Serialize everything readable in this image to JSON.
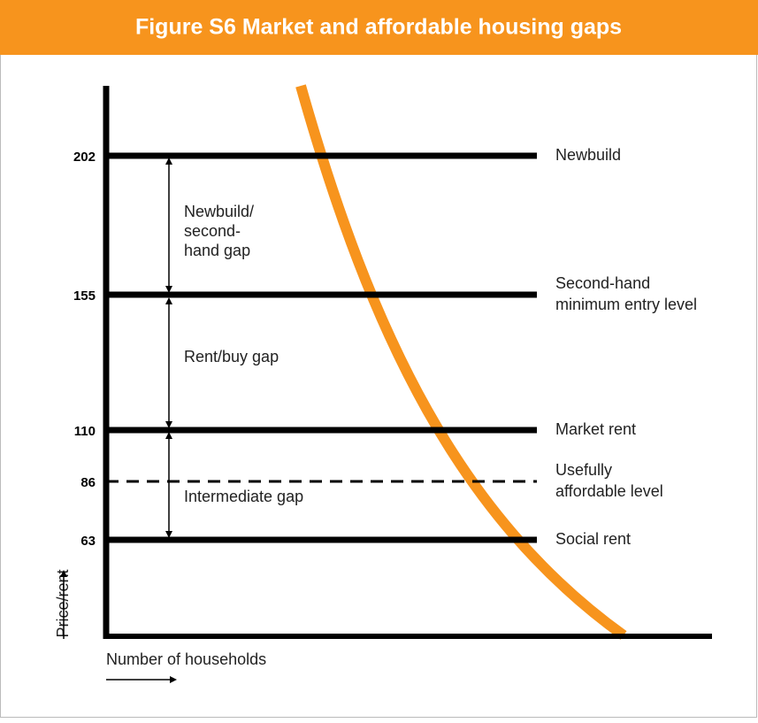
{
  "title": "Figure S6 Market and affordable housing gaps",
  "axes": {
    "y_label": "Price/rent",
    "x_label": "Number of households"
  },
  "levels": [
    {
      "tick": "202",
      "label": [
        "Newbuild"
      ]
    },
    {
      "tick": "155",
      "label": [
        "Second-hand",
        "minimum entry level"
      ]
    },
    {
      "tick": "110",
      "label": [
        "Market rent"
      ]
    },
    {
      "tick": "86",
      "label": [
        "Usefully",
        "affordable level"
      ]
    },
    {
      "tick": "63",
      "label": [
        "Social rent"
      ]
    }
  ],
  "gaps": [
    [
      "Newbuild/",
      "second-",
      "hand gap"
    ],
    [
      "Rent/buy gap"
    ],
    [
      "Intermediate gap"
    ]
  ]
}
